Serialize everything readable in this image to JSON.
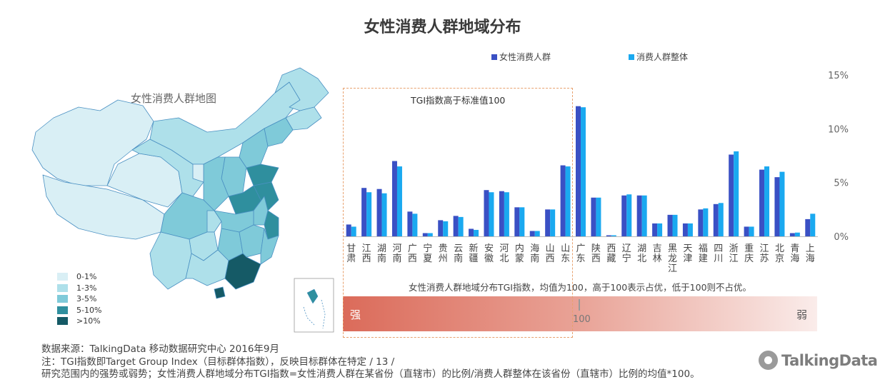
{
  "title": "女性消费人群地域分布",
  "map_title": "女性消费人群地图",
  "map_legend": [
    {
      "label": "0-1%",
      "color": "#d9eff5"
    },
    {
      "label": "1-3%",
      "color": "#aee0ea"
    },
    {
      "label": "3-5%",
      "color": "#7fcad9"
    },
    {
      "label": "5-10%",
      "color": "#2f8f9e"
    },
    {
      "label": ">10%",
      "color": "#155a66"
    }
  ],
  "tgi_box_label": "TGI指数高于标准值100",
  "tgi_note": "女性消费人群地域分布TGI指数，均值为100，高于100表示占优，低于100则不占优。",
  "gradient": {
    "strong": "强",
    "weak": "弱",
    "mid": "100"
  },
  "source_lines": [
    "数据来源：TalkingData 移动数据研究中心  2016年9月",
    "注：TGI指数即Target Group Index（目标群体指数），反映目标群体在特定     /  13  /",
    "研究范围内的强势或弱势；女性消费人群地域分布TGI指数=女性消费人群在某省份（直辖市）的比例/消费人群整体在该省份（直辖市）比例的均值*100。"
  ],
  "brand": "TalkingData",
  "chart_data": {
    "type": "bar",
    "categories": [
      "甘肃",
      "江西",
      "湖南",
      "河南",
      "广西",
      "宁夏",
      "贵州",
      "云南",
      "新疆",
      "安徽",
      "河北",
      "内蒙",
      "海南",
      "山西",
      "山东",
      "广东",
      "陕西",
      "西藏",
      "辽宁",
      "湖北",
      "吉林",
      "黑龙江",
      "天津",
      "福建",
      "四川",
      "浙江",
      "重庆",
      "江苏",
      "北京",
      "青海",
      "上海"
    ],
    "series": [
      {
        "name": "女性消费人群",
        "color": "#3a50c4",
        "values": [
          1.1,
          4.5,
          4.4,
          7.0,
          2.3,
          0.3,
          1.5,
          1.9,
          0.7,
          4.3,
          4.2,
          2.7,
          0.5,
          2.5,
          6.6,
          12.1,
          3.6,
          0.1,
          3.8,
          3.8,
          1.2,
          2.0,
          1.2,
          2.5,
          3.0,
          7.6,
          0.9,
          6.2,
          5.5,
          0.3,
          1.6
        ]
      },
      {
        "name": "消费人群整体",
        "color": "#1aa9f0",
        "values": [
          0.9,
          4.1,
          4.0,
          6.5,
          2.1,
          0.3,
          1.4,
          1.8,
          0.6,
          4.1,
          4.1,
          2.7,
          0.5,
          2.5,
          6.5,
          12.0,
          3.6,
          0.1,
          3.9,
          3.8,
          1.2,
          2.0,
          1.2,
          2.6,
          3.1,
          7.9,
          0.9,
          6.5,
          6.0,
          0.35,
          2.1
        ]
      }
    ],
    "ylim": [
      0,
      15
    ],
    "yticks": [
      "0%",
      "5%",
      "10%",
      "15%"
    ],
    "legend_position": "top"
  }
}
